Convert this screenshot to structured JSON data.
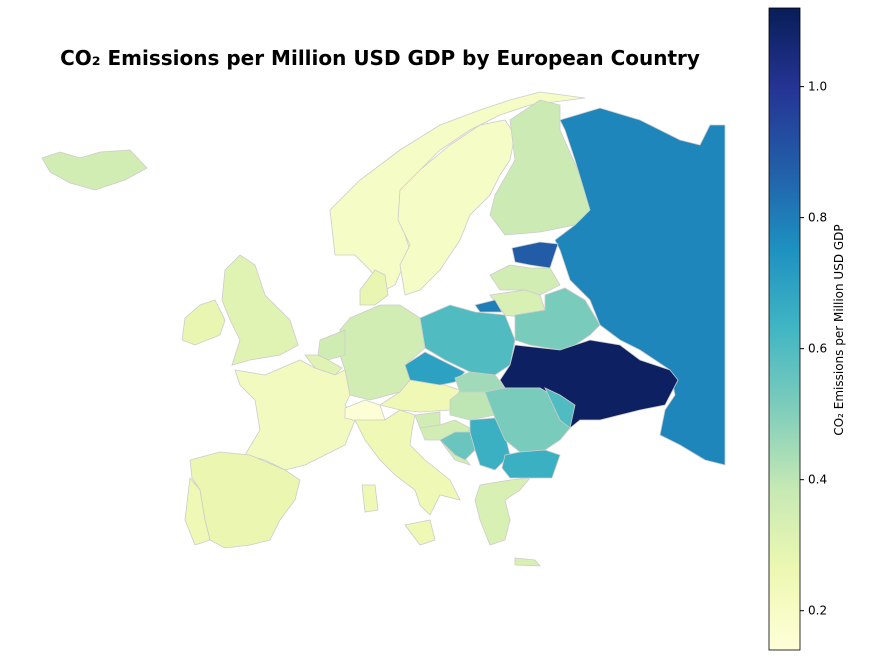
{
  "chart_data": {
    "type": "choropleth",
    "title": "CO₂ Emissions per Million USD GDP by European Country",
    "colorbar_label": "CO₂ Emissions per Million USD GDP",
    "colormap": "YlGnBu",
    "clim": [
      0.14,
      1.12
    ],
    "cticks": [
      0.2,
      0.4,
      0.6,
      0.8,
      {
        "value": 1,
        "label": "1.0"
      }
    ],
    "values": [
      0.35,
      0.2,
      0.2,
      0.37,
      0.78,
      0.88,
      0.35,
      0.33,
      0.8,
      0.52,
      0.6,
      1.1,
      0.35,
      0.28,
      0.36,
      0.3,
      0.22,
      0.3,
      0.28,
      0.27,
      0.25,
      0.15,
      0.25,
      0.25,
      0.25,
      0.25,
      0.7,
      0.45,
      0.4,
      0.35,
      0.35,
      0.55,
      0.65,
      0.52,
      0.6,
      0.65,
      0.33,
      0.33
    ]
  }
}
